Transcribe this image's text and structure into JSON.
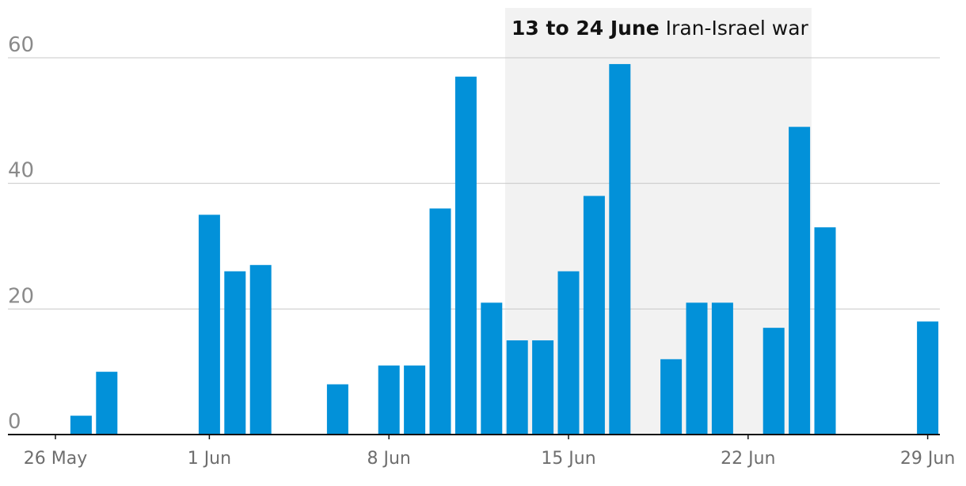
{
  "chart_data": {
    "type": "bar",
    "x": [
      "2025-05-27",
      "2025-05-28",
      "2025-05-29",
      "2025-05-30",
      "2025-05-31",
      "2025-06-01",
      "2025-06-02",
      "2025-06-03",
      "2025-06-04",
      "2025-06-05",
      "2025-06-06",
      "2025-06-07",
      "2025-06-08",
      "2025-06-09",
      "2025-06-10",
      "2025-06-11",
      "2025-06-12",
      "2025-06-13",
      "2025-06-14",
      "2025-06-15",
      "2025-06-16",
      "2025-06-17",
      "2025-06-18",
      "2025-06-19",
      "2025-06-20",
      "2025-06-21",
      "2025-06-22",
      "2025-06-23",
      "2025-06-24",
      "2025-06-25",
      "2025-06-26",
      "2025-06-27",
      "2025-06-28",
      "2025-06-29"
    ],
    "values": [
      3,
      10,
      0,
      0,
      0,
      35,
      26,
      27,
      0,
      0,
      8,
      0,
      11,
      11,
      36,
      57,
      21,
      15,
      15,
      26,
      38,
      59,
      0,
      12,
      21,
      21,
      0,
      17,
      49,
      33,
      0,
      0,
      0,
      18
    ],
    "x_ticks": [
      {
        "date": "2025-05-26",
        "label": "26 May"
      },
      {
        "date": "2025-06-01",
        "label": "1 Jun"
      },
      {
        "date": "2025-06-08",
        "label": "8 Jun"
      },
      {
        "date": "2025-06-15",
        "label": "15 Jun"
      },
      {
        "date": "2025-06-22",
        "label": "22 Jun"
      },
      {
        "date": "2025-06-29",
        "label": "29 Jun"
      }
    ],
    "y_ticks": [
      0,
      20,
      40,
      60
    ],
    "ylim": [
      0,
      60
    ],
    "grid": true,
    "annotation": {
      "start": "2025-06-13",
      "end": "2025-06-24",
      "bold_text": "13 to 24 June",
      "text": "Iran-Israel war"
    },
    "colors": {
      "bar": "#0291d9",
      "shade": "#f2f2f2",
      "grid": "#c8c8c8",
      "baseline": "#121212"
    }
  }
}
